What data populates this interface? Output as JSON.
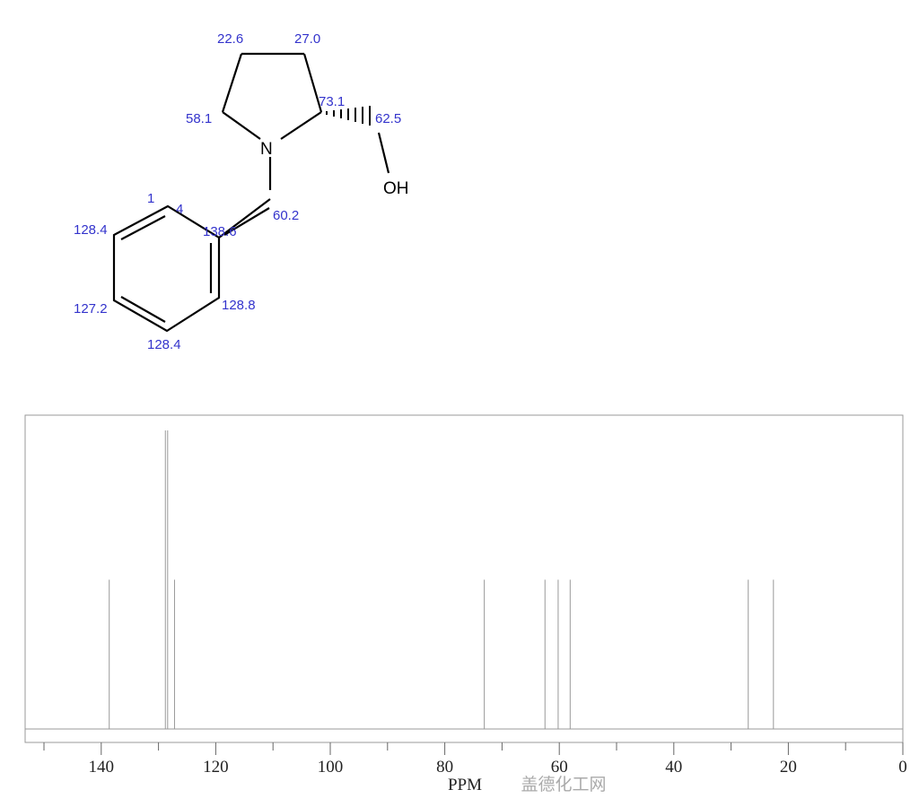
{
  "molecule": {
    "atoms": {
      "nitrogen": "N",
      "hydroxyl": "OH"
    },
    "shift_labels": [
      "22.6",
      "27.0",
      "58.1",
      "73.1",
      "62.5",
      "1",
      "4",
      "138.6",
      "60.2",
      "128.4",
      "127.2",
      "128.8",
      "128.4"
    ],
    "label_color": "#3333cc"
  },
  "chart_data": {
    "type": "bar",
    "title": "",
    "xlabel": "PPM",
    "ylabel": "",
    "xlim": [
      153,
      0
    ],
    "x_reversed": true,
    "xticks": [
      140,
      120,
      100,
      80,
      60,
      40,
      20,
      0
    ],
    "minor_ticks": [
      150,
      130,
      110,
      90,
      70,
      50,
      30,
      10
    ],
    "grid": false,
    "peaks": [
      {
        "ppm": 138.6,
        "intensity": 0.5
      },
      {
        "ppm": 128.8,
        "intensity": 1.0
      },
      {
        "ppm": 128.4,
        "intensity": 1.0
      },
      {
        "ppm": 127.2,
        "intensity": 0.5
      },
      {
        "ppm": 73.1,
        "intensity": 0.5
      },
      {
        "ppm": 62.5,
        "intensity": 0.5
      },
      {
        "ppm": 60.2,
        "intensity": 0.5
      },
      {
        "ppm": 58.1,
        "intensity": 0.5
      },
      {
        "ppm": 27.0,
        "intensity": 0.5
      },
      {
        "ppm": 22.6,
        "intensity": 0.5
      }
    ],
    "peak_color": "#999999"
  },
  "watermark": "盖德化工网"
}
